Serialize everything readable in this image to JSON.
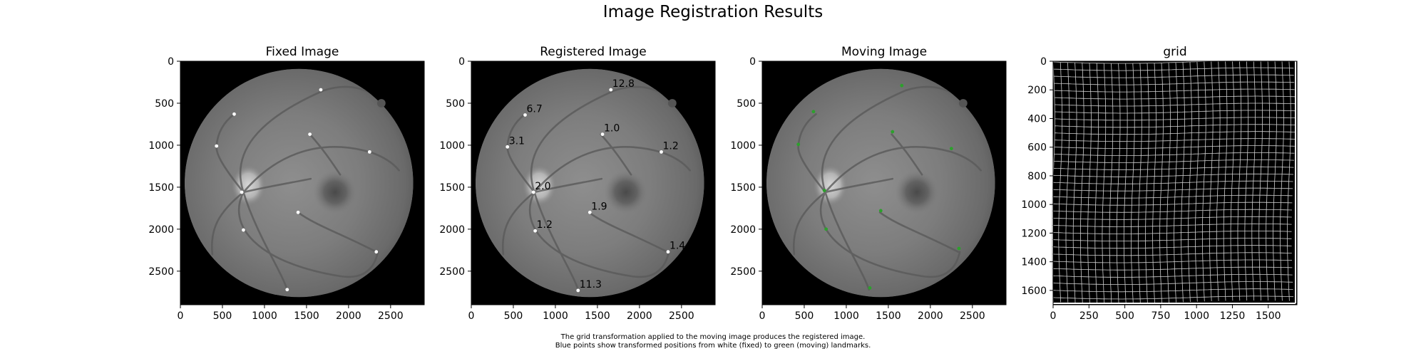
{
  "figure": {
    "title": "Image Registration Results",
    "caption": [
      "The grid transformation applied to the moving image produces the registered image.",
      "Blue points show transformed positions from white (fixed) to green (moving) landmarks."
    ]
  },
  "chart_data": [
    {
      "type": "scatter",
      "title": "Fixed Image",
      "background": "retinal fundus image",
      "xlim": [
        0,
        2900
      ],
      "ylim": [
        2900,
        0
      ],
      "xticks": [
        0,
        500,
        1000,
        1500,
        2000,
        2500
      ],
      "yticks": [
        0,
        500,
        1000,
        1500,
        2000,
        2500
      ],
      "marker_color": "#ffffff",
      "points": [
        {
          "x": 1670,
          "y": 340
        },
        {
          "x": 640,
          "y": 630
        },
        {
          "x": 430,
          "y": 1010
        },
        {
          "x": 1540,
          "y": 870
        },
        {
          "x": 2250,
          "y": 1080
        },
        {
          "x": 730,
          "y": 1560
        },
        {
          "x": 1400,
          "y": 1800
        },
        {
          "x": 750,
          "y": 2010
        },
        {
          "x": 2330,
          "y": 2270
        },
        {
          "x": 1270,
          "y": 2720
        }
      ]
    },
    {
      "type": "scatter",
      "title": "Registered Image",
      "background": "retinal fundus image",
      "xlim": [
        0,
        2900
      ],
      "ylim": [
        2900,
        0
      ],
      "xticks": [
        0,
        500,
        1000,
        1500,
        2000,
        2500
      ],
      "yticks": [
        0,
        500,
        1000,
        1500,
        2000,
        2500
      ],
      "marker_color": "#ffffff",
      "points": [
        {
          "x": 1660,
          "y": 340,
          "label": "12.8"
        },
        {
          "x": 640,
          "y": 640,
          "label": "6.7"
        },
        {
          "x": 430,
          "y": 1020,
          "label": "3.1"
        },
        {
          "x": 1560,
          "y": 870,
          "label": "1.0"
        },
        {
          "x": 2260,
          "y": 1080,
          "label": "1.2"
        },
        {
          "x": 740,
          "y": 1560,
          "label": "2.0"
        },
        {
          "x": 1410,
          "y": 1800,
          "label": "1.9"
        },
        {
          "x": 760,
          "y": 2020,
          "label": "1.2"
        },
        {
          "x": 2340,
          "y": 2270,
          "label": "1.4"
        },
        {
          "x": 1270,
          "y": 2730,
          "label": "11.3"
        }
      ]
    },
    {
      "type": "scatter",
      "title": "Moving Image",
      "background": "retinal fundus image",
      "xlim": [
        0,
        2900
      ],
      "ylim": [
        2900,
        0
      ],
      "xticks": [
        0,
        500,
        1000,
        1500,
        2000,
        2500
      ],
      "yticks": [
        0,
        500,
        1000,
        1500,
        2000,
        2500
      ],
      "marker_color": "#2ca02c",
      "points": [
        {
          "x": 1660,
          "y": 290
        },
        {
          "x": 610,
          "y": 600
        },
        {
          "x": 430,
          "y": 990
        },
        {
          "x": 1550,
          "y": 840
        },
        {
          "x": 2250,
          "y": 1040
        },
        {
          "x": 740,
          "y": 1540
        },
        {
          "x": 1410,
          "y": 1780
        },
        {
          "x": 760,
          "y": 2000
        },
        {
          "x": 2340,
          "y": 2230
        },
        {
          "x": 1280,
          "y": 2700
        }
      ]
    },
    {
      "type": "heatmap",
      "title": "grid",
      "background": "deformation grid",
      "xlim": [
        0,
        1700
      ],
      "ylim": [
        1700,
        0
      ],
      "xticks": [
        0,
        250,
        500,
        750,
        1000,
        1250,
        1500
      ],
      "yticks": [
        0,
        200,
        400,
        600,
        800,
        1000,
        1200,
        1400,
        1600
      ],
      "grid_spacing": 50
    }
  ]
}
